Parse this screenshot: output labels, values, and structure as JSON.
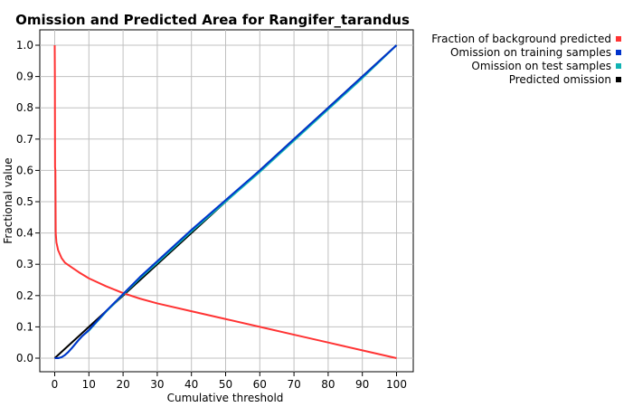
{
  "chart_data": {
    "type": "line",
    "title": "Omission and Predicted Area for Rangifer_tarandus",
    "xlabel": "Cumulative threshold",
    "ylabel": "Fractional value",
    "xlim": [
      0,
      100
    ],
    "ylim": [
      0,
      1.0
    ],
    "xticks": [
      "0",
      "10",
      "20",
      "30",
      "40",
      "50",
      "60",
      "70",
      "80",
      "90",
      "100"
    ],
    "yticks": [
      "0.0",
      "0.1",
      "0.2",
      "0.3",
      "0.4",
      "0.5",
      "0.6",
      "0.7",
      "0.8",
      "0.9",
      "1.0"
    ],
    "grid": true,
    "legend_position": "right",
    "series": [
      {
        "name": "Fraction of background predicted",
        "color": "#ff3333",
        "x": [
          0,
          0.05,
          0.1,
          0.2,
          0.3,
          0.5,
          1,
          2,
          3,
          5,
          7,
          10,
          15,
          20,
          25,
          30,
          40,
          50,
          60,
          70,
          80,
          90,
          100
        ],
        "y": [
          1.0,
          0.9,
          0.61,
          0.6,
          0.4,
          0.37,
          0.345,
          0.32,
          0.305,
          0.29,
          0.275,
          0.255,
          0.23,
          0.208,
          0.19,
          0.175,
          0.15,
          0.125,
          0.1,
          0.075,
          0.05,
          0.025,
          0.0
        ]
      },
      {
        "name": "Omission on training samples",
        "color": "#0033cc",
        "x": [
          0,
          1,
          2,
          3,
          4,
          5,
          6,
          7,
          8,
          10,
          15,
          20,
          25,
          30,
          40,
          50,
          60,
          70,
          80,
          90,
          100
        ],
        "y": [
          0.0,
          0.0,
          0.003,
          0.01,
          0.02,
          0.032,
          0.045,
          0.058,
          0.07,
          0.09,
          0.15,
          0.205,
          0.26,
          0.31,
          0.41,
          0.505,
          0.6,
          0.7,
          0.8,
          0.9,
          1.0
        ]
      },
      {
        "name": "Omission on test samples",
        "color": "#11b3b3",
        "x": [
          0,
          1,
          2,
          3,
          4,
          5,
          6,
          7,
          8,
          10,
          15,
          20,
          25,
          30,
          40,
          50,
          60,
          70,
          80,
          90,
          100
        ],
        "y": [
          0.0,
          0.0,
          0.003,
          0.01,
          0.02,
          0.032,
          0.045,
          0.058,
          0.07,
          0.088,
          0.148,
          0.203,
          0.256,
          0.305,
          0.405,
          0.5,
          0.595,
          0.695,
          0.795,
          0.895,
          1.0
        ]
      },
      {
        "name": "Predicted omission",
        "color": "#000000",
        "x": [
          0,
          100
        ],
        "y": [
          0.0,
          1.0
        ]
      }
    ]
  }
}
